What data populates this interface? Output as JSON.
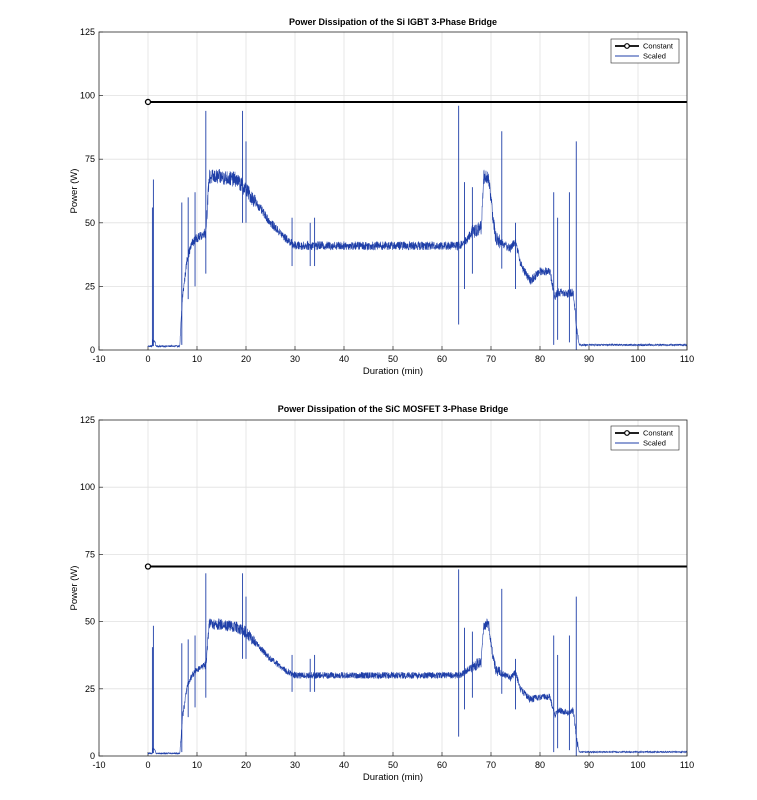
{
  "chart_data": [
    {
      "type": "line",
      "title": "Power Dissipation of the Si IGBT 3-Phase Bridge",
      "xlabel": "Duration (min)",
      "ylabel": "Power (W)",
      "xlim": [
        -10,
        110
      ],
      "ylim": [
        0,
        125
      ],
      "xticks": [
        "-10",
        "0",
        "10",
        "20",
        "30",
        "40",
        "50",
        "60",
        "70",
        "80",
        "90",
        "100",
        "110"
      ],
      "yticks": [
        "0",
        "25",
        "50",
        "75",
        "100",
        "125"
      ],
      "grid": true,
      "legend_position": "top-right",
      "colors": {
        "constant": "#000000",
        "scaled": "#1f3fa8"
      },
      "series": [
        {
          "name": "Constant",
          "style": "line-with-start-marker",
          "x": [
            0,
            110
          ],
          "y": [
            97.5,
            97.5
          ]
        },
        {
          "name": "Scaled",
          "style": "noisy-line",
          "x": [
            0,
            0.9,
            1.0,
            1.5,
            1.6,
            6.5,
            7,
            8,
            9,
            10,
            11,
            11.8,
            12.5,
            15,
            18,
            20,
            22,
            25,
            28,
            30,
            35,
            40,
            50,
            55,
            60,
            62,
            63.5,
            64.5,
            66,
            68,
            68.5,
            69.5,
            70.5,
            71,
            73,
            74,
            75,
            76,
            78,
            80,
            82,
            83,
            84,
            86,
            86.8,
            87.5,
            88,
            90,
            100,
            110
          ],
          "y": [
            1.5,
            1.5,
            4,
            3,
            1.5,
            1.5,
            20,
            36,
            42,
            44,
            45,
            47,
            68,
            68,
            67,
            63,
            58,
            50,
            44,
            41,
            41,
            41,
            41,
            41,
            41,
            41,
            41,
            42,
            46,
            48,
            68,
            68,
            50,
            44,
            41,
            40,
            43,
            34,
            27,
            31,
            31,
            21,
            23,
            22,
            23,
            8,
            2,
            2,
            2,
            2
          ]
        }
      ]
    },
    {
      "type": "line",
      "title": "Power Dissipation of the SiC MOSFET 3-Phase Bridge",
      "xlabel": "Duration (min)",
      "ylabel": "Power (W)",
      "xlim": [
        -10,
        110
      ],
      "ylim": [
        0,
        125
      ],
      "xticks": [
        "-10",
        "0",
        "10",
        "20",
        "30",
        "40",
        "50",
        "60",
        "70",
        "80",
        "90",
        "100",
        "110"
      ],
      "yticks": [
        "0",
        "25",
        "50",
        "75",
        "100",
        "125"
      ],
      "grid": true,
      "legend_position": "top-right",
      "colors": {
        "constant": "#000000",
        "scaled": "#1f3fa8"
      },
      "series": [
        {
          "name": "Constant",
          "style": "line-with-start-marker",
          "x": [
            0,
            110
          ],
          "y": [
            70.5,
            70.5
          ]
        },
        {
          "name": "Scaled",
          "style": "noisy-line",
          "x": [
            0,
            0.9,
            1.0,
            1.5,
            1.6,
            6.5,
            7,
            8,
            9,
            10,
            11,
            11.8,
            12.5,
            15,
            18,
            20,
            22,
            25,
            28,
            30,
            35,
            40,
            50,
            55,
            60,
            62,
            63.5,
            64.5,
            66,
            68,
            68.5,
            69.5,
            70.5,
            71,
            73,
            74,
            75,
            76,
            78,
            80,
            82,
            83,
            84,
            86,
            86.8,
            87.5,
            88,
            90,
            100,
            110
          ],
          "y": [
            1,
            1,
            3,
            2,
            1,
            1,
            14,
            26,
            30,
            32,
            33,
            34,
            49,
            49,
            48,
            46,
            42,
            36,
            32,
            30,
            30,
            30,
            30,
            30,
            30,
            30,
            30,
            31,
            33,
            35,
            49,
            49,
            36,
            32,
            30,
            29,
            31,
            25,
            21,
            22,
            22,
            15,
            17,
            16,
            17,
            6,
            1.5,
            1.5,
            1.5,
            1.5
          ]
        }
      ]
    }
  ]
}
